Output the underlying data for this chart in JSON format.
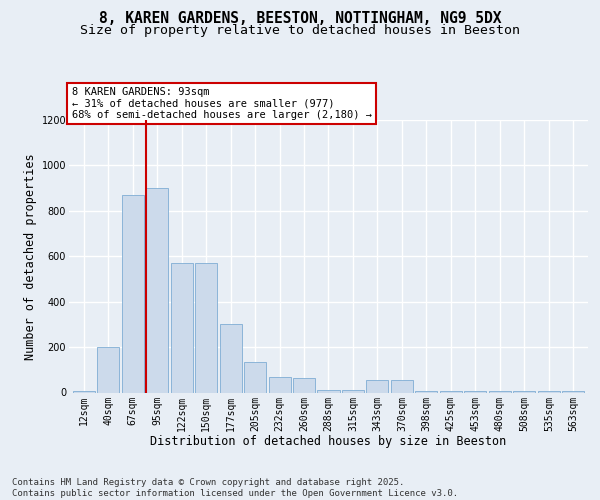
{
  "title_line1": "8, KAREN GARDENS, BEESTON, NOTTINGHAM, NG9 5DX",
  "title_line2": "Size of property relative to detached houses in Beeston",
  "xlabel": "Distribution of detached houses by size in Beeston",
  "ylabel": "Number of detached properties",
  "footnote_line1": "Contains HM Land Registry data © Crown copyright and database right 2025.",
  "footnote_line2": "Contains public sector information licensed under the Open Government Licence v3.0.",
  "categories": [
    "12sqm",
    "40sqm",
    "67sqm",
    "95sqm",
    "122sqm",
    "150sqm",
    "177sqm",
    "205sqm",
    "232sqm",
    "260sqm",
    "288sqm",
    "315sqm",
    "343sqm",
    "370sqm",
    "398sqm",
    "425sqm",
    "453sqm",
    "480sqm",
    "508sqm",
    "535sqm",
    "563sqm"
  ],
  "values": [
    5,
    200,
    870,
    900,
    570,
    570,
    300,
    135,
    70,
    65,
    10,
    10,
    55,
    55,
    5,
    5,
    5,
    5,
    5,
    5,
    5
  ],
  "bar_color": "#ccdaeb",
  "bar_edge_color": "#7fadd4",
  "vline_x": 3,
  "vline_color": "#cc0000",
  "annotation_text": "8 KAREN GARDENS: 93sqm\n← 31% of detached houses are smaller (977)\n68% of semi-detached houses are larger (2,180) →",
  "annotation_box_facecolor": "#ffffff",
  "annotation_box_edgecolor": "#cc0000",
  "ylim_max": 1200,
  "yticks": [
    0,
    200,
    400,
    600,
    800,
    1000,
    1200
  ],
  "bg_color": "#e8eef5",
  "grid_color": "#ffffff",
  "title_fontsize": 10.5,
  "subtitle_fontsize": 9.5,
  "axis_label_fontsize": 8.5,
  "tick_fontsize": 7,
  "footnote_fontsize": 6.5
}
